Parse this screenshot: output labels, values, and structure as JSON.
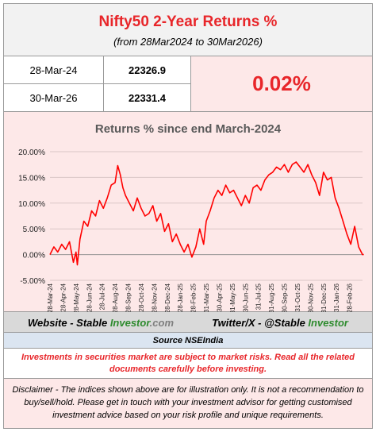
{
  "header": {
    "title": "Nifty50 2-Year Returns %",
    "subtitle": "(from 28Mar2024 to 30Mar2026)"
  },
  "table": {
    "rows": [
      {
        "date": "28-Mar-24",
        "value": "22326.9"
      },
      {
        "date": "30-Mar-26",
        "value": "22331.4"
      }
    ],
    "return_pct": "0.02%"
  },
  "footer": {
    "website_label": "Website - Stable",
    "website_brand": "Investor",
    "website_domain": ".com",
    "twitter_label": "Twitter/X - @Stable",
    "twitter_brand": "Investor",
    "source": "Source NSEIndia",
    "warning": "Investments in securities market are subject to market risks. Read all the related documents carefully before investing.",
    "disclaimer": "Disclaimer - The indices shown above are for illustration only. It is not a recommendation to buy/sell/hold. Please get in touch with your investment advisor for getting customised investment advice based on your risk profile and unique requirements."
  },
  "colors": {
    "accent": "#e8262a",
    "brand_green": "#2e8b2e",
    "panel_pink": "#fde8e8"
  },
  "chart_data": {
    "type": "line",
    "title": "Returns % since end March-2024",
    "xlabel": "",
    "ylabel": "",
    "ylim": [
      -5,
      20
    ],
    "yticks": [
      "-5.00%",
      "0.00%",
      "5.00%",
      "10.00%",
      "15.00%",
      "20.00%"
    ],
    "ytick_values": [
      -5,
      0,
      5,
      10,
      15,
      20
    ],
    "xtick_labels": [
      "28-Mar-24",
      "28-Apr-24",
      "28-May-24",
      "28-Jun-24",
      "28-Jul-24",
      "28-Aug-24",
      "28-Sep-24",
      "28-Oct-24",
      "28-Nov-24",
      "28-Dec-24",
      "28-Jan-25",
      "28-Feb-25",
      "31-Mar-25",
      "30-Apr-25",
      "31-May-25",
      "30-Jun-25",
      "31-Jul-25",
      "31-Aug-25",
      "30-Sep-25",
      "31-Oct-25",
      "30-Nov-25",
      "31-Dec-25",
      "31-Jan-26",
      "28-Feb-26"
    ],
    "grid": true,
    "series": [
      {
        "color": "#ff0000",
        "x": [
          0,
          0.3,
          0.6,
          0.9,
          1.2,
          1.5,
          1.8,
          2.0,
          2.1,
          2.3,
          2.6,
          2.9,
          3.2,
          3.5,
          3.8,
          4.1,
          4.4,
          4.7,
          5.0,
          5.2,
          5.4,
          5.6,
          5.8,
          6.1,
          6.4,
          6.7,
          7.0,
          7.3,
          7.6,
          7.9,
          8.2,
          8.5,
          8.8,
          9.1,
          9.4,
          9.7,
          10.0,
          10.3,
          10.6,
          10.9,
          11.2,
          11.5,
          11.8,
          12.0,
          12.3,
          12.6,
          12.9,
          13.2,
          13.5,
          13.8,
          14.1,
          14.4,
          14.7,
          15.0,
          15.3,
          15.6,
          15.9,
          16.2,
          16.5,
          16.8,
          17.1,
          17.4,
          17.7,
          18.0,
          18.3,
          18.6,
          18.9,
          19.2,
          19.5,
          19.8,
          20.1,
          20.4,
          20.7,
          21.0,
          21.3,
          21.6,
          21.9,
          22.2,
          22.5,
          22.8,
          23.1,
          23.4,
          23.7,
          24.0,
          24.1
        ],
        "y": [
          0,
          1.5,
          0.5,
          2.0,
          1.0,
          2.5,
          -1.5,
          0.5,
          -2.0,
          3.0,
          6.5,
          5.5,
          8.5,
          7.5,
          10.5,
          9.0,
          11.0,
          13.5,
          14.0,
          17.3,
          15.5,
          13.0,
          11.5,
          10.0,
          8.5,
          11.0,
          9.0,
          7.5,
          8.0,
          9.5,
          6.5,
          8.0,
          4.5,
          6.0,
          2.5,
          4.0,
          2.0,
          0.5,
          2.0,
          -0.5,
          1.5,
          5.0,
          2.0,
          6.5,
          8.5,
          11.0,
          12.5,
          11.5,
          13.5,
          12.0,
          12.5,
          11.0,
          9.5,
          11.5,
          10.0,
          13.0,
          13.5,
          12.5,
          14.5,
          15.5,
          16.0,
          17.0,
          16.5,
          17.5,
          16.0,
          17.5,
          18.0,
          17.0,
          16.0,
          17.5,
          15.5,
          14.0,
          11.5,
          16.0,
          14.5,
          15.0,
          11.0,
          9.0,
          6.5,
          4.0,
          2.0,
          5.5,
          1.5,
          0.0,
          0.02
        ]
      }
    ]
  }
}
